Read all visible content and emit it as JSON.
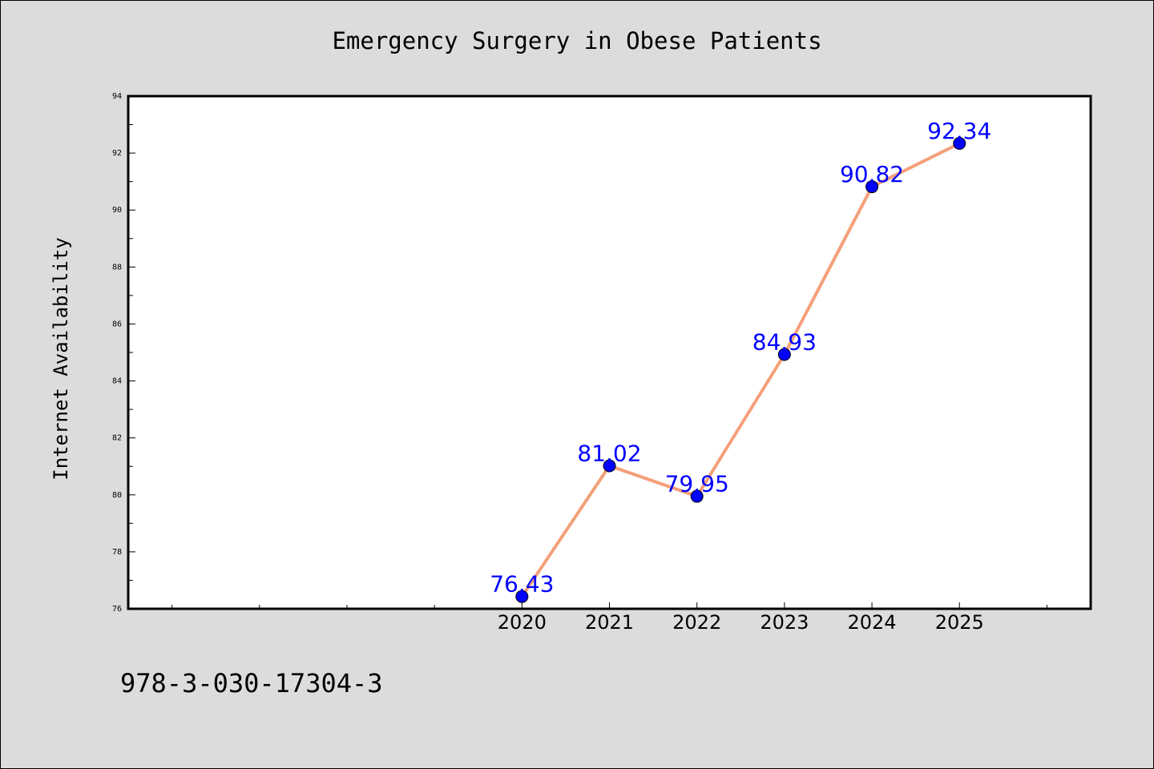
{
  "page": {
    "footer_code": "978-3-030-17304-3"
  },
  "colors": {
    "background": "#dcdcdc",
    "plot_background": "#ffffff",
    "line": "#f4a07a",
    "marker": "#0000ff",
    "data_label": "#0000ff"
  },
  "chart_data": {
    "type": "line",
    "title": "Emergency Surgery in Obese Patients",
    "xlabel": "",
    "ylabel": "Internet Availability",
    "x": [
      2020,
      2021,
      2022,
      2023,
      2024,
      2025
    ],
    "x_tick_labels": [
      "2020",
      "2021",
      "2022",
      "2023",
      "2024",
      "2025"
    ],
    "xlim": [
      2015.5,
      2026.5
    ],
    "ylim": [
      76,
      94
    ],
    "y_ticks": [
      76,
      78,
      80,
      82,
      84,
      86,
      88,
      90,
      92,
      94
    ],
    "series": [
      {
        "values": [
          76.43,
          81.02,
          79.95,
          84.93,
          90.82,
          92.34
        ],
        "labels": [
          "76.43",
          "81.02",
          "79.95",
          "84.93",
          "90.82",
          "92.34"
        ]
      }
    ],
    "grid": false,
    "legend": "none",
    "markers": "circle"
  }
}
